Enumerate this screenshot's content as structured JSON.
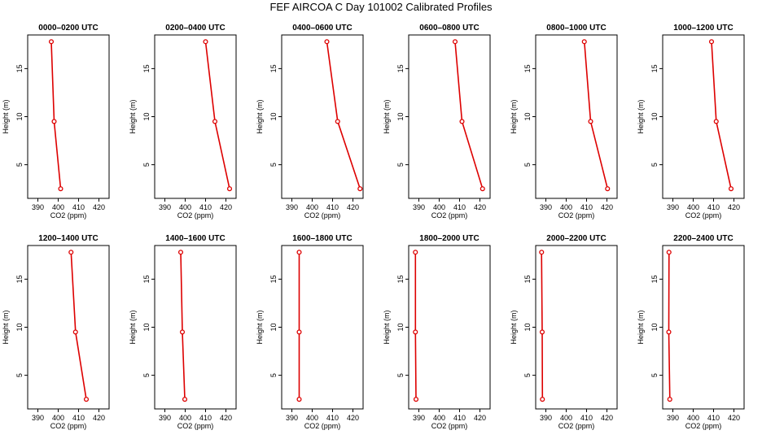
{
  "figure": {
    "title": "FEF  AIRCOA C  Day 101002  Calibrated Profiles"
  },
  "style": {
    "line_color": "#dd0000",
    "marker_color": "#dd0000",
    "frame_color": "#000000"
  },
  "chart_data": [
    {
      "type": "line",
      "title": "0000–0200 UTC",
      "xlabel": "CO2 (ppm)",
      "ylabel": "Height (m)",
      "xlim": [
        385,
        425
      ],
      "ylim": [
        1.5,
        18.5
      ],
      "xticks": [
        390,
        400,
        410,
        420
      ],
      "yticks": [
        5,
        10,
        15
      ],
      "grid": false,
      "series": [
        {
          "x": [
            401.2,
            398.0,
            396.6
          ],
          "y": [
            2.5,
            9.5,
            17.8
          ]
        }
      ]
    },
    {
      "type": "line",
      "title": "0200–0400 UTC",
      "xlabel": "CO2 (ppm)",
      "ylabel": "Height (m)",
      "xlim": [
        385,
        425
      ],
      "ylim": [
        1.5,
        18.5
      ],
      "xticks": [
        390,
        400,
        410,
        420
      ],
      "yticks": [
        5,
        10,
        15
      ],
      "grid": false,
      "series": [
        {
          "x": [
            421.8,
            414.6,
            410.0
          ],
          "y": [
            2.5,
            9.5,
            17.8
          ]
        }
      ]
    },
    {
      "type": "line",
      "title": "0400–0600 UTC",
      "xlabel": "CO2 (ppm)",
      "ylabel": "Height (m)",
      "xlim": [
        385,
        425
      ],
      "ylim": [
        1.5,
        18.5
      ],
      "xticks": [
        390,
        400,
        410,
        420
      ],
      "yticks": [
        5,
        10,
        15
      ],
      "grid": false,
      "series": [
        {
          "x": [
            423.5,
            412.5,
            407.2
          ],
          "y": [
            2.5,
            9.5,
            17.8
          ]
        }
      ]
    },
    {
      "type": "line",
      "title": "0600–0800 UTC",
      "xlabel": "CO2 (ppm)",
      "ylabel": "Height (m)",
      "xlim": [
        385,
        425
      ],
      "ylim": [
        1.5,
        18.5
      ],
      "xticks": [
        390,
        400,
        410,
        420
      ],
      "yticks": [
        5,
        10,
        15
      ],
      "grid": false,
      "series": [
        {
          "x": [
            421.3,
            411.2,
            407.8
          ],
          "y": [
            2.5,
            9.5,
            17.8
          ]
        }
      ]
    },
    {
      "type": "line",
      "title": "0800–1000 UTC",
      "xlabel": "CO2 (ppm)",
      "ylabel": "Height (m)",
      "xlim": [
        385,
        425
      ],
      "ylim": [
        1.5,
        18.5
      ],
      "xticks": [
        390,
        400,
        410,
        420
      ],
      "yticks": [
        5,
        10,
        15
      ],
      "grid": false,
      "series": [
        {
          "x": [
            420.3,
            412.0,
            408.9
          ],
          "y": [
            2.5,
            9.5,
            17.8
          ]
        }
      ]
    },
    {
      "type": "line",
      "title": "1000–1200 UTC",
      "xlabel": "CO2 (ppm)",
      "ylabel": "Height (m)",
      "xlim": [
        385,
        425
      ],
      "ylim": [
        1.5,
        18.5
      ],
      "xticks": [
        390,
        400,
        410,
        420
      ],
      "yticks": [
        5,
        10,
        15
      ],
      "grid": false,
      "series": [
        {
          "x": [
            418.6,
            411.3,
            409.0
          ],
          "y": [
            2.5,
            9.5,
            17.8
          ]
        }
      ]
    },
    {
      "type": "line",
      "title": "1200–1400 UTC",
      "xlabel": "CO2 (ppm)",
      "ylabel": "Height (m)",
      "xlim": [
        385,
        425
      ],
      "ylim": [
        1.5,
        18.5
      ],
      "xticks": [
        390,
        400,
        410,
        420
      ],
      "yticks": [
        5,
        10,
        15
      ],
      "grid": false,
      "series": [
        {
          "x": [
            413.8,
            408.5,
            406.3
          ],
          "y": [
            2.5,
            9.5,
            17.8
          ]
        }
      ]
    },
    {
      "type": "line",
      "title": "1400–1600 UTC",
      "xlabel": "CO2 (ppm)",
      "ylabel": "Height (m)",
      "xlim": [
        385,
        425
      ],
      "ylim": [
        1.5,
        18.5
      ],
      "xticks": [
        390,
        400,
        410,
        420
      ],
      "yticks": [
        5,
        10,
        15
      ],
      "grid": false,
      "series": [
        {
          "x": [
            399.8,
            398.6,
            397.8
          ],
          "y": [
            2.5,
            9.5,
            17.8
          ]
        }
      ]
    },
    {
      "type": "line",
      "title": "1600–1800 UTC",
      "xlabel": "CO2 (ppm)",
      "ylabel": "Height (m)",
      "xlim": [
        385,
        425
      ],
      "ylim": [
        1.5,
        18.5
      ],
      "xticks": [
        390,
        400,
        410,
        420
      ],
      "yticks": [
        5,
        10,
        15
      ],
      "grid": false,
      "series": [
        {
          "x": [
            393.6,
            393.6,
            393.6
          ],
          "y": [
            2.5,
            9.5,
            17.8
          ]
        }
      ]
    },
    {
      "type": "line",
      "title": "1800–2000 UTC",
      "xlabel": "CO2 (ppm)",
      "ylabel": "Height (m)",
      "xlim": [
        385,
        425
      ],
      "ylim": [
        1.5,
        18.5
      ],
      "xticks": [
        390,
        400,
        410,
        420
      ],
      "yticks": [
        5,
        10,
        15
      ],
      "grid": false,
      "series": [
        {
          "x": [
            388.6,
            388.3,
            388.3
          ],
          "y": [
            2.5,
            9.5,
            17.8
          ]
        }
      ]
    },
    {
      "type": "line",
      "title": "2000–2200 UTC",
      "xlabel": "CO2 (ppm)",
      "ylabel": "Height (m)",
      "xlim": [
        385,
        425
      ],
      "ylim": [
        1.5,
        18.5
      ],
      "xticks": [
        390,
        400,
        410,
        420
      ],
      "yticks": [
        5,
        10,
        15
      ],
      "grid": false,
      "series": [
        {
          "x": [
            388.3,
            388.2,
            387.9
          ],
          "y": [
            2.5,
            9.5,
            17.8
          ]
        }
      ]
    },
    {
      "type": "line",
      "title": "2200–2400 UTC",
      "xlabel": "CO2 (ppm)",
      "ylabel": "Height (m)",
      "xlim": [
        385,
        425
      ],
      "ylim": [
        1.5,
        18.5
      ],
      "xticks": [
        390,
        400,
        410,
        420
      ],
      "yticks": [
        5,
        10,
        15
      ],
      "grid": false,
      "series": [
        {
          "x": [
            388.5,
            388.0,
            388.1
          ],
          "y": [
            2.5,
            9.5,
            17.8
          ]
        }
      ]
    }
  ]
}
